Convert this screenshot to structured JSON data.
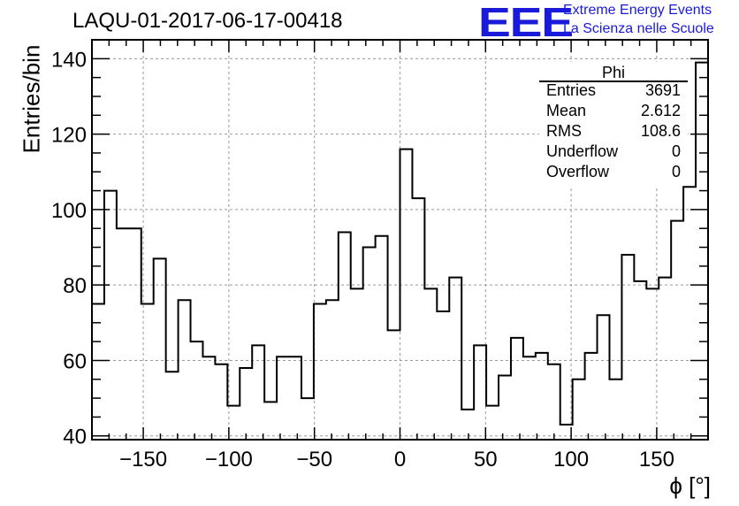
{
  "title": "LAQU-01-2017-06-17-00418",
  "logo": {
    "text": "EEE",
    "line1": "Extreme Energy Events",
    "line2": "La Scienza nelle Scuole",
    "color": "#1a1adb"
  },
  "stats": {
    "title": "Phi",
    "rows": [
      {
        "label": "Entries",
        "value": "3691"
      },
      {
        "label": "Mean",
        "value": "2.612"
      },
      {
        "label": "RMS",
        "value": "108.6"
      },
      {
        "label": "Underflow",
        "value": "0"
      },
      {
        "label": "Overflow",
        "value": "0"
      }
    ]
  },
  "chart_data": {
    "type": "histogram",
    "title": "LAQU-01-2017-06-17-00418",
    "xlabel": "ϕ [°]",
    "ylabel": "Entries/bin",
    "xlim": [
      -180,
      180
    ],
    "ylim": [
      39,
      145
    ],
    "bin_width": 7.2,
    "x_ticks": [
      -150,
      -100,
      -50,
      0,
      50,
      100,
      150
    ],
    "x_tick_labels": [
      "−150",
      "−100",
      "−50",
      "0",
      "50",
      "100",
      "150"
    ],
    "y_ticks": [
      40,
      60,
      80,
      100,
      120,
      140
    ],
    "y_tick_labels": [
      "40",
      "60",
      "80",
      "100",
      "120",
      "140"
    ],
    "grid": true,
    "bin_edges_start": -180,
    "values": [
      75,
      105,
      95,
      95,
      75,
      87,
      57,
      76,
      65,
      61,
      59,
      48,
      58,
      64,
      49,
      61,
      61,
      50,
      75,
      76,
      94,
      79,
      90,
      93,
      68,
      116,
      103,
      79,
      73,
      82,
      47,
      64,
      48,
      56,
      66,
      61,
      62,
      59,
      43,
      55,
      62,
      72,
      55,
      88,
      81,
      79,
      82,
      97,
      106,
      139
    ]
  }
}
